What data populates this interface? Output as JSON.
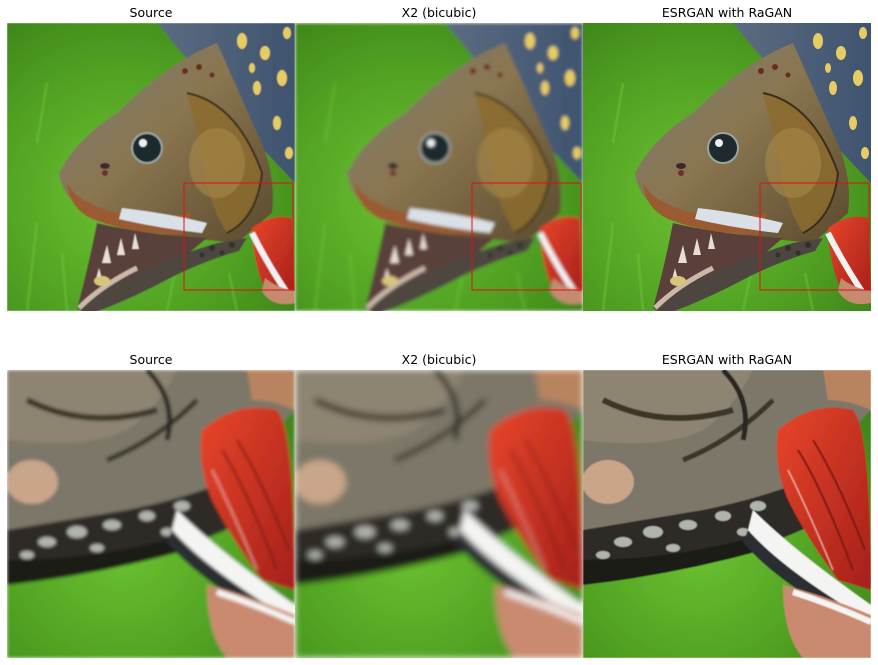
{
  "figure": {
    "rows": [
      {
        "titles": [
          "Source",
          "X2 (bicubic)",
          "ESRGAN with RaGAN"
        ]
      },
      {
        "titles": [
          "Source",
          "X2 (bicubic)",
          "ESRGAN with RaGAN"
        ]
      }
    ],
    "image_description": "Brook trout head with open mouth on green grass background; bottom row shows zoomed crop of the red-boxed region",
    "colors": {
      "grass": "#4f9e22",
      "highlight_box": "#e01010"
    }
  }
}
